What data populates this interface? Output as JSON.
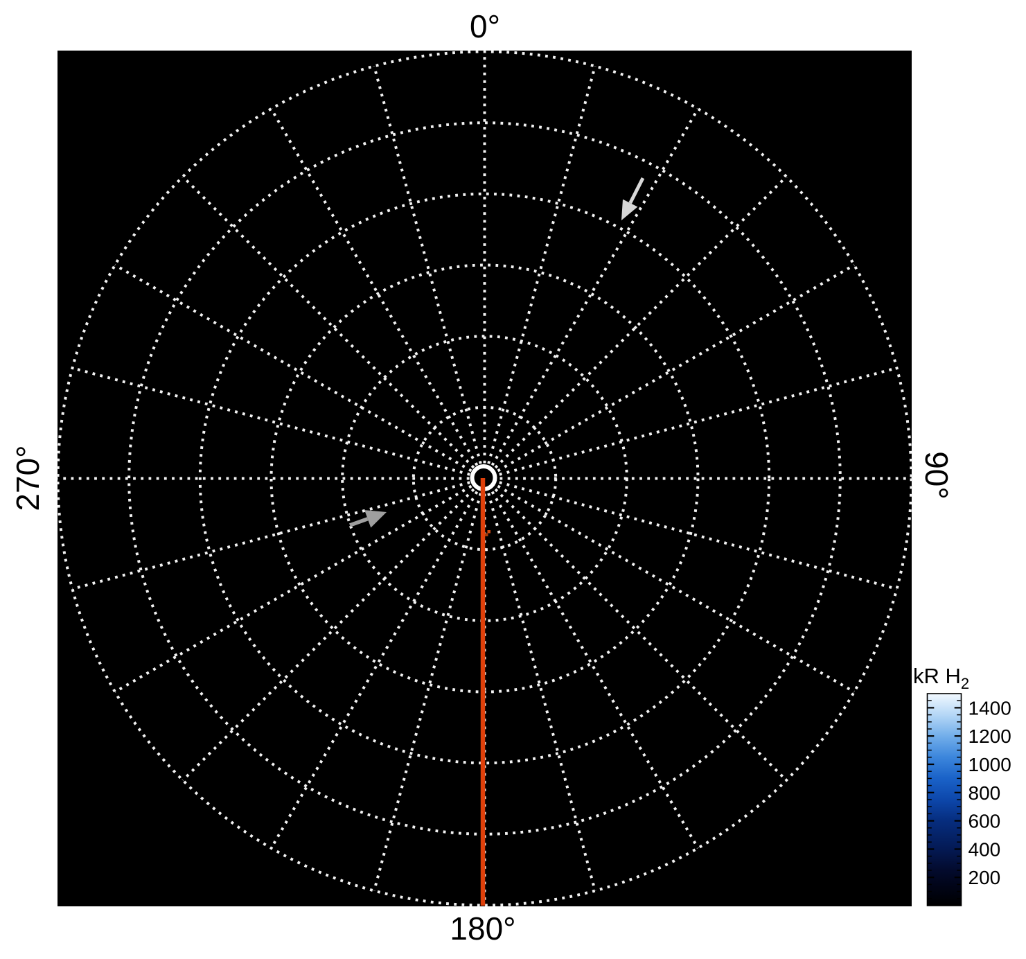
{
  "chart_data": {
    "type": "polar_heatmap",
    "description": "Polar map of H2 emission on black background with dotted polar grid",
    "background_color": "#000000",
    "page_background": "#ffffff",
    "polar_grid": {
      "style": "dotted",
      "grid_color": "#f2f2f2",
      "num_rings": 6,
      "radial_line_step_deg": 15,
      "center_ring_color": "#ffffff",
      "angle_labels": [
        {
          "text": "0°",
          "angle_deg": 0,
          "rotation": 0
        },
        {
          "text": "90°",
          "angle_deg": 90,
          "rotation": 90
        },
        {
          "text": "180°",
          "angle_deg": 180,
          "rotation": 0
        },
        {
          "text": "270°",
          "angle_deg": 270,
          "rotation": -90
        }
      ]
    },
    "overlays": {
      "meridian_line": {
        "angle_deg": 180,
        "color": "#e0400a",
        "note": "solid line from center to 180 degrees"
      },
      "data_specks": [
        {
          "x": 703.5,
          "y": 765.0,
          "color": "#d24a10"
        },
        {
          "x": 700.0,
          "y": 769.5,
          "color": "#a83c0c"
        }
      ],
      "arrows": [
        {
          "name": "upper-right-arrow",
          "color": "#d8d8d8",
          "tail": [
            928,
            257
          ],
          "tip": [
            897,
            318
          ],
          "head_len": 28,
          "head_halfwidth": 12,
          "shaft_width": 5
        },
        {
          "name": "left-arrow",
          "color": "#9f9f9f",
          "tail": [
            505,
            758
          ],
          "tip": [
            558,
            739
          ],
          "head_len": 29,
          "head_halfwidth": 13.5,
          "shaft_width": 5.5
        }
      ]
    },
    "colorbar": {
      "title_main": "kR H",
      "title_sub": "2",
      "range": [
        0,
        1500
      ],
      "tick_values": [
        1400,
        1200,
        1000,
        800,
        600,
        400,
        200
      ],
      "tick_labels": [
        "1400",
        "1200",
        "1000",
        "800",
        "600",
        "400",
        "200"
      ],
      "minor_tick_step": 50,
      "gradient_stops": [
        {
          "pos": 0.0,
          "color": "#000000"
        },
        {
          "pos": 0.1,
          "color": "#01051a"
        },
        {
          "pos": 0.17,
          "color": "#030b2e"
        },
        {
          "pos": 0.27,
          "color": "#041a55"
        },
        {
          "pos": 0.4,
          "color": "#062d7e"
        },
        {
          "pos": 0.5,
          "color": "#0d47ab"
        },
        {
          "pos": 0.6,
          "color": "#1a62c8"
        },
        {
          "pos": 0.7,
          "color": "#3c86dc"
        },
        {
          "pos": 0.8,
          "color": "#72aeea"
        },
        {
          "pos": 0.9,
          "color": "#b5d7f6"
        },
        {
          "pos": 1.0,
          "color": "#f2f9ff"
        }
      ]
    }
  }
}
